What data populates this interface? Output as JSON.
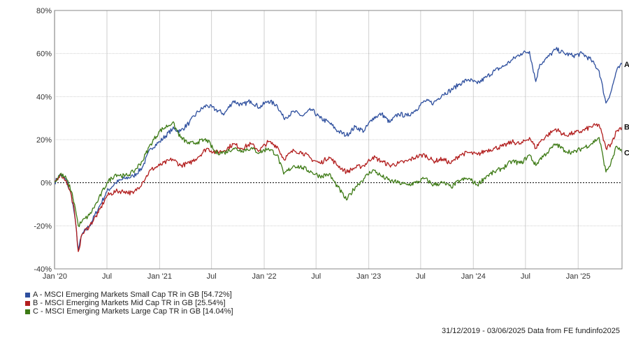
{
  "chart_data": {
    "type": "line",
    "ylim": [
      -40,
      80
    ],
    "y_ticks": [
      "80%",
      "60%",
      "40%",
      "20%",
      "0%",
      "-20%",
      "-40%"
    ],
    "x_ticks": [
      {
        "label": "Jan '20",
        "date": "2020-01-01"
      },
      {
        "label": "Jul",
        "date": "2020-07-01"
      },
      {
        "label": "Jan '21",
        "date": "2021-01-01"
      },
      {
        "label": "Jul",
        "date": "2021-07-01"
      },
      {
        "label": "Jan '22",
        "date": "2022-01-01"
      },
      {
        "label": "Jul",
        "date": "2022-07-01"
      },
      {
        "label": "Jan '23",
        "date": "2023-01-01"
      },
      {
        "label": "Jul",
        "date": "2023-07-01"
      },
      {
        "label": "Jan '24",
        "date": "2024-01-01"
      },
      {
        "label": "Jul",
        "date": "2024-07-01"
      },
      {
        "label": "Jan '25",
        "date": "2025-01-01"
      }
    ],
    "x_range": [
      "2019-12-31",
      "2025-06-03"
    ],
    "grid": true,
    "series": [
      {
        "name": "A - MSCI Emerging Markets Small Cap TR in GB [54.72%]",
        "end_label": "A",
        "color": "#2e4f9e",
        "data": [
          [
            "2019-12-31",
            0
          ],
          [
            "2020-01-20",
            4
          ],
          [
            "2020-02-10",
            1
          ],
          [
            "2020-02-28",
            -6
          ],
          [
            "2020-03-10",
            -15
          ],
          [
            "2020-03-23",
            -31
          ],
          [
            "2020-04-05",
            -24
          ],
          [
            "2020-05-01",
            -20
          ],
          [
            "2020-06-01",
            -12
          ],
          [
            "2020-07-01",
            -4
          ],
          [
            "2020-08-01",
            0
          ],
          [
            "2020-09-01",
            2
          ],
          [
            "2020-10-01",
            3
          ],
          [
            "2020-11-01",
            7
          ],
          [
            "2020-12-01",
            16
          ],
          [
            "2021-01-01",
            19
          ],
          [
            "2021-02-15",
            25
          ],
          [
            "2021-03-15",
            24
          ],
          [
            "2021-04-15",
            28
          ],
          [
            "2021-05-15",
            33
          ],
          [
            "2021-06-15",
            36
          ],
          [
            "2021-07-15",
            34
          ],
          [
            "2021-08-15",
            32
          ],
          [
            "2021-09-15",
            38
          ],
          [
            "2021-10-15",
            36
          ],
          [
            "2021-11-15",
            38
          ],
          [
            "2021-12-15",
            35
          ],
          [
            "2022-01-15",
            38
          ],
          [
            "2022-02-15",
            36
          ],
          [
            "2022-03-10",
            30
          ],
          [
            "2022-04-15",
            33
          ],
          [
            "2022-05-15",
            31
          ],
          [
            "2022-06-15",
            34
          ],
          [
            "2022-07-15",
            30
          ],
          [
            "2022-08-15",
            28
          ],
          [
            "2022-09-15",
            24
          ],
          [
            "2022-10-15",
            22
          ],
          [
            "2022-11-15",
            26
          ],
          [
            "2022-12-15",
            24
          ],
          [
            "2023-01-15",
            30
          ],
          [
            "2023-02-15",
            32
          ],
          [
            "2023-03-15",
            28
          ],
          [
            "2023-04-15",
            32
          ],
          [
            "2023-05-15",
            31
          ],
          [
            "2023-06-15",
            34
          ],
          [
            "2023-07-15",
            38
          ],
          [
            "2023-08-15",
            37
          ],
          [
            "2023-09-15",
            41
          ],
          [
            "2023-10-15",
            43
          ],
          [
            "2023-11-15",
            46
          ],
          [
            "2023-12-15",
            48
          ],
          [
            "2024-01-15",
            46
          ],
          [
            "2024-02-15",
            49
          ],
          [
            "2024-03-15",
            52
          ],
          [
            "2024-04-15",
            54
          ],
          [
            "2024-05-15",
            57
          ],
          [
            "2024-06-15",
            60
          ],
          [
            "2024-07-15",
            61
          ],
          [
            "2024-08-06",
            47
          ],
          [
            "2024-08-20",
            55
          ],
          [
            "2024-09-15",
            58
          ],
          [
            "2024-10-15",
            62
          ],
          [
            "2024-11-15",
            60
          ],
          [
            "2024-12-15",
            59
          ],
          [
            "2025-01-15",
            60
          ],
          [
            "2025-02-15",
            57
          ],
          [
            "2025-03-15",
            52
          ],
          [
            "2025-04-08",
            37
          ],
          [
            "2025-04-25",
            42
          ],
          [
            "2025-05-15",
            52
          ],
          [
            "2025-06-03",
            55
          ]
        ]
      },
      {
        "name": "B - MSCI Emerging Markets Mid Cap TR in GB [25.54%]",
        "end_label": "B",
        "color": "#b21e1e",
        "data": [
          [
            "2019-12-31",
            0
          ],
          [
            "2020-01-20",
            4
          ],
          [
            "2020-02-10",
            1
          ],
          [
            "2020-02-28",
            -6
          ],
          [
            "2020-03-10",
            -14
          ],
          [
            "2020-03-23",
            -32
          ],
          [
            "2020-04-05",
            -24
          ],
          [
            "2020-05-01",
            -20
          ],
          [
            "2020-06-01",
            -14
          ],
          [
            "2020-07-01",
            -6
          ],
          [
            "2020-08-01",
            -4
          ],
          [
            "2020-09-01",
            -4
          ],
          [
            "2020-10-01",
            -5
          ],
          [
            "2020-11-01",
            0
          ],
          [
            "2020-12-01",
            6
          ],
          [
            "2021-01-01",
            8
          ],
          [
            "2021-02-15",
            11
          ],
          [
            "2021-03-15",
            8
          ],
          [
            "2021-04-15",
            9
          ],
          [
            "2021-05-15",
            12
          ],
          [
            "2021-06-15",
            16
          ],
          [
            "2021-07-15",
            14
          ],
          [
            "2021-08-15",
            15
          ],
          [
            "2021-09-15",
            18
          ],
          [
            "2021-10-15",
            16
          ],
          [
            "2021-11-15",
            18
          ],
          [
            "2021-12-15",
            15
          ],
          [
            "2022-01-15",
            19
          ],
          [
            "2022-02-15",
            17
          ],
          [
            "2022-03-10",
            11
          ],
          [
            "2022-04-15",
            15
          ],
          [
            "2022-05-15",
            14
          ],
          [
            "2022-06-15",
            11
          ],
          [
            "2022-07-15",
            9
          ],
          [
            "2022-08-15",
            12
          ],
          [
            "2022-09-15",
            8
          ],
          [
            "2022-10-15",
            5
          ],
          [
            "2022-11-15",
            7
          ],
          [
            "2022-12-15",
            8
          ],
          [
            "2023-01-15",
            12
          ],
          [
            "2023-02-15",
            10
          ],
          [
            "2023-03-15",
            8
          ],
          [
            "2023-04-15",
            9
          ],
          [
            "2023-05-15",
            10
          ],
          [
            "2023-06-15",
            12
          ],
          [
            "2023-07-15",
            13
          ],
          [
            "2023-08-15",
            10
          ],
          [
            "2023-09-15",
            11
          ],
          [
            "2023-10-15",
            9
          ],
          [
            "2023-11-15",
            13
          ],
          [
            "2023-12-15",
            14
          ],
          [
            "2024-01-15",
            13
          ],
          [
            "2024-02-15",
            15
          ],
          [
            "2024-03-15",
            16
          ],
          [
            "2024-04-15",
            17
          ],
          [
            "2024-05-15",
            19
          ],
          [
            "2024-06-15",
            18
          ],
          [
            "2024-07-15",
            21
          ],
          [
            "2024-08-06",
            16
          ],
          [
            "2024-08-20",
            19
          ],
          [
            "2024-09-15",
            22
          ],
          [
            "2024-10-15",
            25
          ],
          [
            "2024-11-15",
            22
          ],
          [
            "2024-12-15",
            23
          ],
          [
            "2025-01-15",
            24
          ],
          [
            "2025-02-15",
            26
          ],
          [
            "2025-03-15",
            27
          ],
          [
            "2025-04-08",
            16
          ],
          [
            "2025-04-25",
            18
          ],
          [
            "2025-05-15",
            24
          ],
          [
            "2025-06-03",
            26
          ]
        ]
      },
      {
        "name": "C - MSCI Emerging Markets Large Cap TR in GB [14.04%]",
        "end_label": "C",
        "color": "#3d7a15",
        "data": [
          [
            "2019-12-31",
            0
          ],
          [
            "2020-01-20",
            4
          ],
          [
            "2020-02-10",
            2
          ],
          [
            "2020-02-28",
            -4
          ],
          [
            "2020-03-10",
            -10
          ],
          [
            "2020-03-23",
            -20
          ],
          [
            "2020-04-05",
            -18
          ],
          [
            "2020-05-01",
            -15
          ],
          [
            "2020-06-01",
            -8
          ],
          [
            "2020-07-01",
            0
          ],
          [
            "2020-08-01",
            4
          ],
          [
            "2020-09-01",
            3
          ],
          [
            "2020-10-01",
            5
          ],
          [
            "2020-11-01",
            10
          ],
          [
            "2020-12-01",
            18
          ],
          [
            "2021-01-01",
            24
          ],
          [
            "2021-02-15",
            28
          ],
          [
            "2021-03-15",
            21
          ],
          [
            "2021-04-15",
            18
          ],
          [
            "2021-05-15",
            19
          ],
          [
            "2021-06-15",
            20
          ],
          [
            "2021-07-15",
            14
          ],
          [
            "2021-08-15",
            14
          ],
          [
            "2021-09-15",
            16
          ],
          [
            "2021-10-15",
            15
          ],
          [
            "2021-11-15",
            16
          ],
          [
            "2021-12-15",
            14
          ],
          [
            "2022-01-15",
            16
          ],
          [
            "2022-02-15",
            13
          ],
          [
            "2022-03-10",
            4
          ],
          [
            "2022-04-15",
            8
          ],
          [
            "2022-05-15",
            7
          ],
          [
            "2022-06-15",
            5
          ],
          [
            "2022-07-15",
            3
          ],
          [
            "2022-08-15",
            4
          ],
          [
            "2022-09-15",
            -2
          ],
          [
            "2022-10-15",
            -8
          ],
          [
            "2022-11-15",
            -2
          ],
          [
            "2022-12-15",
            2
          ],
          [
            "2023-01-15",
            6
          ],
          [
            "2023-02-15",
            3
          ],
          [
            "2023-03-15",
            1
          ],
          [
            "2023-04-15",
            0
          ],
          [
            "2023-05-15",
            -1
          ],
          [
            "2023-06-15",
            0
          ],
          [
            "2023-07-15",
            2
          ],
          [
            "2023-08-15",
            -1
          ],
          [
            "2023-09-15",
            0
          ],
          [
            "2023-10-15",
            -2
          ],
          [
            "2023-11-15",
            1
          ],
          [
            "2023-12-15",
            2
          ],
          [
            "2024-01-15",
            -1
          ],
          [
            "2024-02-15",
            3
          ],
          [
            "2024-03-15",
            5
          ],
          [
            "2024-04-15",
            7
          ],
          [
            "2024-05-15",
            10
          ],
          [
            "2024-06-15",
            9
          ],
          [
            "2024-07-15",
            13
          ],
          [
            "2024-08-06",
            8
          ],
          [
            "2024-08-20",
            11
          ],
          [
            "2024-09-15",
            14
          ],
          [
            "2024-10-15",
            18
          ],
          [
            "2024-11-15",
            15
          ],
          [
            "2024-12-15",
            14
          ],
          [
            "2025-01-15",
            16
          ],
          [
            "2025-02-15",
            18
          ],
          [
            "2025-03-15",
            21
          ],
          [
            "2025-04-08",
            5
          ],
          [
            "2025-04-25",
            9
          ],
          [
            "2025-05-15",
            17
          ],
          [
            "2025-06-03",
            14
          ]
        ]
      }
    ]
  },
  "footer": {
    "text": "31/12/2019 - 03/06/2025 Data from FE fundinfo2025"
  }
}
